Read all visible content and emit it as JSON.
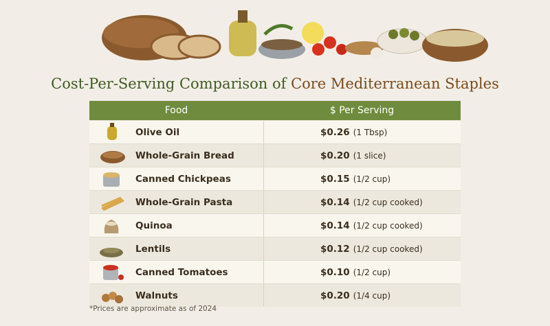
{
  "header": {
    "title_part1": "Cost-Per-Serving Comparison of",
    "title_part2": "Core Mediterranean Staples"
  },
  "table": {
    "headers": [
      "Food",
      "$ Per Serving"
    ],
    "rows": [
      [
        "Olive Oil",
        "$0.26",
        "(1 Tbsp)"
      ],
      [
        "Whole-Grain Bread",
        "$0.20",
        "(1 slice)"
      ],
      [
        "Canned Chickpeas",
        "$0.15",
        "(1/2 cup)"
      ],
      [
        "Whole-Grain Pasta",
        "$0.14",
        "(1/2 cup cooked)"
      ],
      [
        "Quinoa",
        "$0.14",
        "(1/2 cup cooked)"
      ],
      [
        "Lentils",
        "$0.12",
        "(1/2 cup cooked)"
      ],
      [
        "Canned Tomatoes",
        "$0.10",
        "(1/2 cup)"
      ],
      [
        "Walnuts",
        "$0.20",
        "(1/4 cup)"
      ]
    ]
  },
  "footnote": "*Prices are approximate as of 2024"
}
